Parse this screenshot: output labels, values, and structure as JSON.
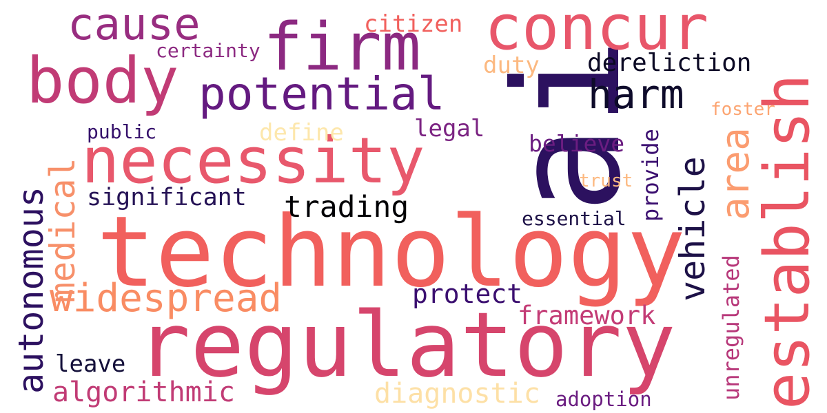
{
  "words": [
    {
      "text": "technology",
      "color": "#f1605d"
    },
    {
      "text": "regulatory",
      "color": "#d6456c"
    },
    {
      "text": "ai",
      "color": "#2c115f"
    },
    {
      "text": "establish",
      "color": "#e95462"
    },
    {
      "text": "necessity",
      "color": "#e8586c"
    },
    {
      "text": "concur",
      "color": "#e8566a"
    },
    {
      "text": "firm",
      "color": "#8c2981"
    },
    {
      "text": "body",
      "color": "#c13b75"
    },
    {
      "text": "potential",
      "color": "#641a80"
    },
    {
      "text": "cause",
      "color": "#982d80"
    },
    {
      "text": "widespread",
      "color": "#f98c63"
    },
    {
      "text": "medical",
      "color": "#f7906a"
    },
    {
      "text": "autonomous",
      "color": "#2d1160"
    },
    {
      "text": "vehicle",
      "color": "#1d1147"
    },
    {
      "text": "area",
      "color": "#fb9c70"
    },
    {
      "text": "harm",
      "color": "#0e0b2b"
    },
    {
      "text": "trading",
      "color": "#000004"
    },
    {
      "text": "algorithmic",
      "color": "#c13b75"
    },
    {
      "text": "diagnostic",
      "color": "#fde0a6"
    },
    {
      "text": "framework",
      "color": "#c33b75"
    },
    {
      "text": "protect",
      "color": "#3b0f70"
    },
    {
      "text": "significant",
      "color": "#251255"
    },
    {
      "text": "dereliction",
      "color": "#0b0924"
    },
    {
      "text": "citizen",
      "color": "#f1605d"
    },
    {
      "text": "duty",
      "color": "#fcb981"
    },
    {
      "text": "leave",
      "color": "#14103a"
    },
    {
      "text": "define",
      "color": "#fde7ac"
    },
    {
      "text": "legal",
      "color": "#7b2382"
    },
    {
      "text": "believe",
      "color": "#6b1d81"
    },
    {
      "text": "public",
      "color": "#35106b"
    },
    {
      "text": "certainty",
      "color": "#8c2981"
    },
    {
      "text": "essential",
      "color": "#1d1147"
    },
    {
      "text": "provide",
      "color": "#3b0f70"
    },
    {
      "text": "unregulated",
      "color": "#b73779"
    },
    {
      "text": "adoption",
      "color": "#6b1d81"
    },
    {
      "text": "foster",
      "color": "#fca572"
    },
    {
      "text": "trust",
      "color": "#fcb981"
    }
  ]
}
